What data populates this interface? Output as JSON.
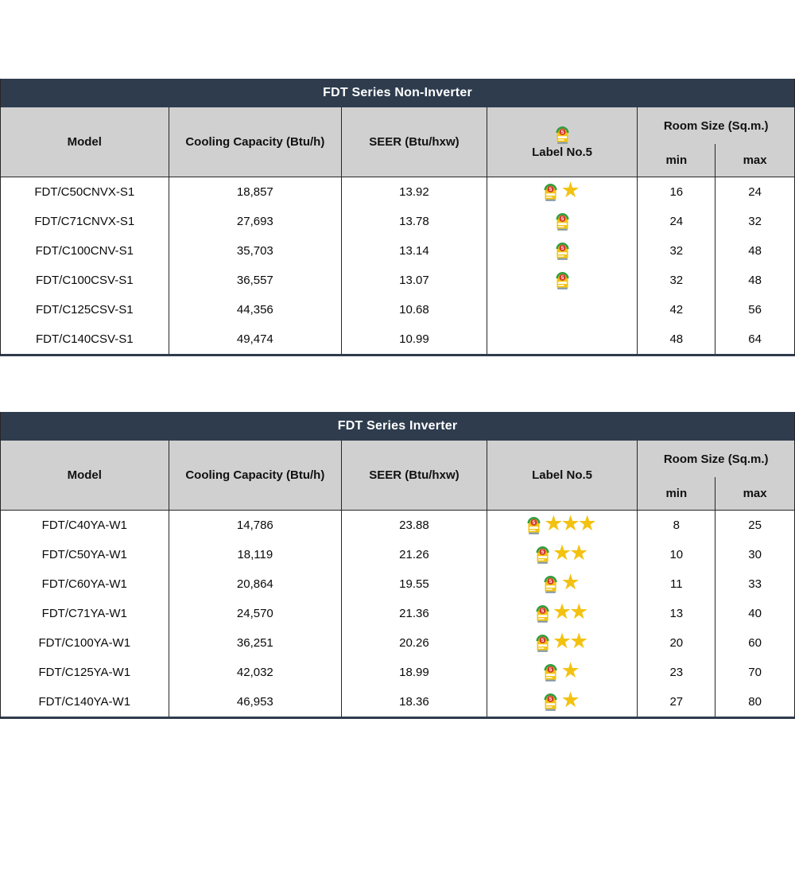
{
  "colors": {
    "title_bar_bg": "#2E3C4E",
    "title_text": "#FFFFFF",
    "header_bg": "#D1D0D0",
    "header_text": "#111111",
    "body_text": "#0A0A0A",
    "grid_line": "#262626",
    "bottom_border": "#2F3B4C",
    "star": "#F3C211",
    "label_yellow": "#F2C411",
    "label_green": "#2F9E41",
    "label_red": "#D63B2F",
    "label_base": "#8498A6"
  },
  "icons": {
    "label_no5": {
      "name": "energy-label-no5-icon",
      "digit": "5"
    },
    "star_char": "★"
  },
  "tables": [
    {
      "title": "FDT Series Non-Inverter",
      "columns": {
        "model": "Model",
        "cooling": "Cooling Capacity (Btu/h)",
        "seer": "SEER (Btu/hxw)",
        "label": "Label No.5",
        "room": "Room Size (Sq.m.)",
        "min": "min",
        "max": "max"
      },
      "label_header_has_icon": true,
      "rows": [
        {
          "model": "FDT/C50CNVX-S1",
          "cooling": "18,857",
          "seer": "13.92",
          "has_label_icon": true,
          "stars": 1,
          "min": "16",
          "max": "24"
        },
        {
          "model": "FDT/C71CNVX-S1",
          "cooling": "27,693",
          "seer": "13.78",
          "has_label_icon": true,
          "stars": 0,
          "min": "24",
          "max": "32"
        },
        {
          "model": "FDT/C100CNV-S1",
          "cooling": "35,703",
          "seer": "13.14",
          "has_label_icon": true,
          "stars": 0,
          "min": "32",
          "max": "48"
        },
        {
          "model": "FDT/C100CSV-S1",
          "cooling": "36,557",
          "seer": "13.07",
          "has_label_icon": true,
          "stars": 0,
          "min": "32",
          "max": "48"
        },
        {
          "model": "FDT/C125CSV-S1",
          "cooling": "44,356",
          "seer": "10.68",
          "has_label_icon": false,
          "stars": 0,
          "min": "42",
          "max": "56"
        },
        {
          "model": "FDT/C140CSV-S1",
          "cooling": "49,474",
          "seer": "10.99",
          "has_label_icon": false,
          "stars": 0,
          "min": "48",
          "max": "64"
        }
      ]
    },
    {
      "title": "FDT Series Inverter",
      "columns": {
        "model": "Model",
        "cooling": "Cooling Capacity (Btu/h)",
        "seer": "SEER (Btu/hxw)",
        "label": "Label No.5",
        "room": "Room Size (Sq.m.)",
        "min": "min",
        "max": "max"
      },
      "label_header_has_icon": false,
      "rows": [
        {
          "model": "FDT/C40YA-W1",
          "cooling": "14,786",
          "seer": "23.88",
          "has_label_icon": true,
          "stars": 3,
          "min": "8",
          "max": "25"
        },
        {
          "model": "FDT/C50YA-W1",
          "cooling": "18,119",
          "seer": "21.26",
          "has_label_icon": true,
          "stars": 2,
          "min": "10",
          "max": "30"
        },
        {
          "model": "FDT/C60YA-W1",
          "cooling": "20,864",
          "seer": "19.55",
          "has_label_icon": true,
          "stars": 1,
          "min": "11",
          "max": "33"
        },
        {
          "model": "FDT/C71YA-W1",
          "cooling": "24,570",
          "seer": "21.36",
          "has_label_icon": true,
          "stars": 2,
          "min": "13",
          "max": "40"
        },
        {
          "model": "FDT/C100YA-W1",
          "cooling": "36,251",
          "seer": "20.26",
          "has_label_icon": true,
          "stars": 2,
          "min": "20",
          "max": "60"
        },
        {
          "model": "FDT/C125YA-W1",
          "cooling": "42,032",
          "seer": "18.99",
          "has_label_icon": true,
          "stars": 1,
          "min": "23",
          "max": "70"
        },
        {
          "model": "FDT/C140YA-W1",
          "cooling": "46,953",
          "seer": "18.36",
          "has_label_icon": true,
          "stars": 1,
          "min": "27",
          "max": "80"
        }
      ]
    }
  ]
}
